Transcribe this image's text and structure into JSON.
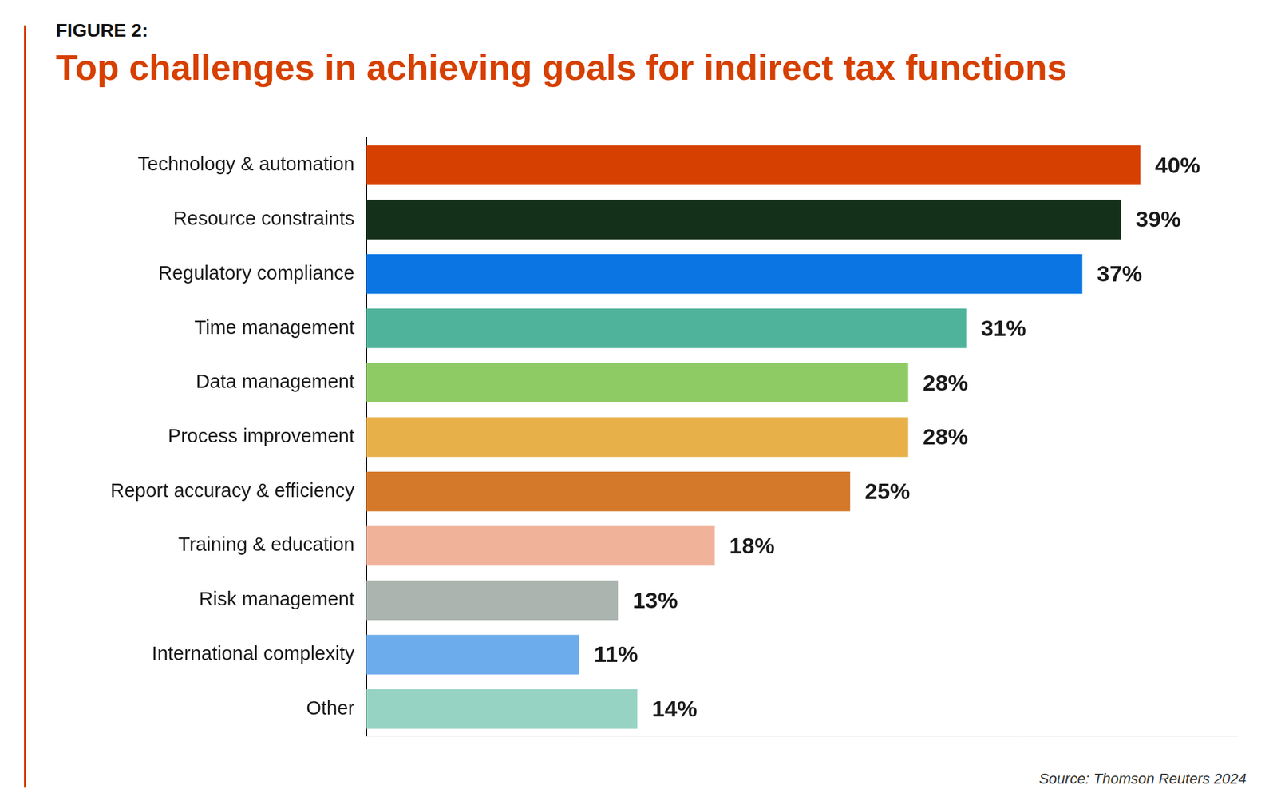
{
  "chart_data": {
    "type": "bar",
    "subtitle": "FIGURE 2:",
    "title": "Top challenges in achieving goals for indirect tax functions",
    "source": "Source: Thomson Reuters 2024",
    "orientation": "horizontal",
    "categories": [
      "Technology & automation",
      "Resource constraints",
      "Regulatory compliance",
      "Time management",
      "Data management",
      "Process improvement",
      "Report accuracy & efficiency",
      "Training & education",
      "Risk management",
      "International complexity",
      "Other"
    ],
    "values": [
      40,
      39,
      37,
      31,
      28,
      28,
      25,
      18,
      13,
      11,
      14
    ],
    "value_labels": [
      "40%",
      "39%",
      "37%",
      "31%",
      "28%",
      "28%",
      "25%",
      "18%",
      "13%",
      "11%",
      "14%"
    ],
    "colors": [
      "#D64000",
      "#14301A",
      "#0B76E3",
      "#4FB39B",
      "#8FCB65",
      "#E8B048",
      "#D4782A",
      "#F0B39A",
      "#ABB4AE",
      "#6DACEC",
      "#97D3C3"
    ],
    "xlim": [
      0,
      45
    ],
    "grid": false,
    "data_labels": true,
    "tick_labels": "y"
  }
}
